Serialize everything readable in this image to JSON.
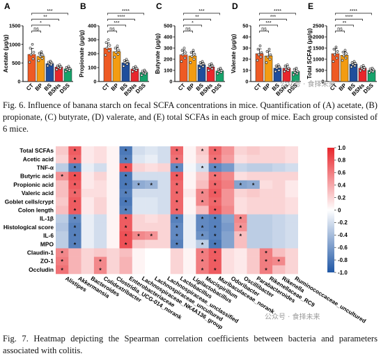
{
  "figure6": {
    "caption": "Fig. 6. Influence of banana starch on fecal SCFA concentrations in mice. Quantification of (A) acetate, (B) propionate, (C) butyrate, (D) valerate, and (E) total SCFAs in each group of mice. Each group consisted of 6 mice.",
    "groups": [
      "CT",
      "BP",
      "BS",
      "BSNs",
      "DSS"
    ],
    "group_colors": [
      "#ee5a24",
      "#f39c12",
      "#1f4e9c",
      "#e8262c",
      "#16a36b"
    ],
    "panels": [
      {
        "letter": "A",
        "ylabel": "Acetate (μg/g)",
        "ylim": [
          0,
          1500
        ],
        "ticks": [
          "0",
          "500",
          "1000",
          "1500"
        ],
        "values": [
          730,
          680,
          480,
          390,
          340
        ],
        "points": [
          [
            520,
            610,
            720,
            790,
            900,
            1000
          ],
          [
            560,
            620,
            670,
            710,
            760,
            800
          ],
          [
            420,
            450,
            480,
            500,
            520,
            550
          ],
          [
            320,
            350,
            380,
            400,
            420,
            450
          ],
          [
            270,
            300,
            330,
            350,
            380,
            410
          ]
        ],
        "sig": [
          {
            "from": 0,
            "to": 4,
            "label": "***"
          },
          {
            "from": 0,
            "to": 3,
            "label": "**"
          },
          {
            "from": 0,
            "to": 2,
            "label": "*"
          },
          {
            "from": 0,
            "to": 1,
            "label": "ns"
          }
        ]
      },
      {
        "letter": "B",
        "ylabel": "Propionate (μg/g)",
        "ylim": [
          0,
          400
        ],
        "ticks": [
          "0",
          "100",
          "200",
          "300",
          "400"
        ],
        "values": [
          240,
          215,
          135,
          90,
          65
        ],
        "points": [
          [
            190,
            220,
            240,
            260,
            280,
            300
          ],
          [
            175,
            195,
            210,
            225,
            240,
            255
          ],
          [
            110,
            125,
            135,
            145,
            150,
            160
          ],
          [
            70,
            80,
            88,
            95,
            100,
            108
          ],
          [
            45,
            55,
            62,
            68,
            75,
            82
          ]
        ],
        "sig": [
          {
            "from": 0,
            "to": 4,
            "label": "****"
          },
          {
            "from": 0,
            "to": 3,
            "label": "****"
          },
          {
            "from": 0,
            "to": 2,
            "label": "***"
          },
          {
            "from": 0,
            "to": 1,
            "label": "ns"
          }
        ]
      },
      {
        "letter": "C",
        "ylabel": "Butyrate (μg/g)",
        "ylim": [
          0,
          500
        ],
        "ticks": [
          "0",
          "100",
          "200",
          "300",
          "400",
          "500"
        ],
        "values": [
          240,
          230,
          150,
          130,
          95
        ],
        "points": [
          [
            180,
            210,
            240,
            260,
            280,
            300
          ],
          [
            170,
            200,
            225,
            245,
            260,
            280
          ],
          [
            120,
            135,
            150,
            160,
            170,
            180
          ],
          [
            100,
            115,
            130,
            140,
            150,
            160
          ],
          [
            70,
            82,
            92,
            100,
            110,
            120
          ]
        ],
        "sig": [
          {
            "from": 0,
            "to": 4,
            "label": "***"
          },
          {
            "from": 0,
            "to": 3,
            "label": "**"
          },
          {
            "from": 0,
            "to": 2,
            "label": "*"
          },
          {
            "from": 0,
            "to": 1,
            "label": "ns"
          }
        ]
      },
      {
        "letter": "D",
        "ylabel": "Valerate (μg/g)",
        "ylim": [
          0,
          50
        ],
        "ticks": [
          "0",
          "10",
          "20",
          "30",
          "40",
          "50"
        ],
        "values": [
          25,
          23,
          12,
          12,
          9
        ],
        "points": [
          [
            19,
            22,
            24,
            26,
            29,
            32
          ],
          [
            17,
            20,
            22,
            24,
            27,
            29
          ],
          [
            9,
            10,
            12,
            13,
            14,
            15
          ],
          [
            9,
            10,
            11,
            12,
            14,
            15
          ],
          [
            6,
            7,
            8,
            9,
            11,
            12
          ]
        ],
        "sig": [
          {
            "from": 0,
            "to": 4,
            "label": "****"
          },
          {
            "from": 0,
            "to": 3,
            "label": "***"
          },
          {
            "from": 0,
            "to": 2,
            "label": "***"
          },
          {
            "from": 0,
            "to": 1,
            "label": "ns"
          }
        ]
      },
      {
        "letter": "E",
        "ylabel": "Total SCFAs (μg/g)",
        "ylim": [
          0,
          2500
        ],
        "ticks": [
          "0",
          "500",
          "1000",
          "1500",
          "2000",
          "2500"
        ],
        "values": [
          1250,
          1180,
          780,
          600,
          500
        ],
        "points": [
          [
            900,
            1050,
            1200,
            1350,
            1450,
            1550
          ],
          [
            950,
            1050,
            1150,
            1250,
            1320,
            1400
          ],
          [
            650,
            700,
            760,
            810,
            850,
            900
          ],
          [
            480,
            530,
            580,
            620,
            660,
            720
          ],
          [
            400,
            440,
            480,
            520,
            560,
            600
          ]
        ],
        "sig": [
          {
            "from": 0,
            "to": 4,
            "label": "****"
          },
          {
            "from": 0,
            "to": 3,
            "label": "****"
          },
          {
            "from": 0,
            "to": 2,
            "label": "**"
          },
          {
            "from": 0,
            "to": 1,
            "label": "ns"
          }
        ]
      }
    ]
  },
  "figure7": {
    "caption": "Fig. 7. Heatmap depicting the Spearman correlation coefficients between bacteria and parameters associated with colitis.",
    "rows": [
      "Total SCFAs",
      "Acetic acid",
      "TNF-α",
      "Butyric acid",
      "Propionic acid",
      "Valeric acid",
      "Goblet cells/crypt",
      "Colon length",
      "IL-1β",
      "Histological score",
      "IL-6",
      "MPO",
      "Claudin-1",
      "ZO-1",
      "Occludin"
    ],
    "columns": [
      "Alistipes",
      "Akkermansia",
      "Bacteroides",
      "Colidextribacter",
      "Clostridia_UCG-014_norank",
      "Enterobacteriaceae",
      "Lachnospiraceae_NK4A136_group",
      "Lachnospiraceae_uncultured",
      "Lachnospiraceae_unclassified",
      "Lactobacillus",
      "Ligilactobacillus",
      "Mucispirillum",
      "Muribaculaceae_norank",
      "Odoribacter",
      "Oscillibacter",
      "Parabacteroides",
      "Rikenellaceae_RC9",
      "Rikenella",
      "Ruminococcaceae_uncultured"
    ],
    "column_labels": [
      "Alistipes",
      "Akkermansia",
      "Bacteroides",
      "Colidextribacter",
      "Clostridia_UCG-014_norank",
      "Enterobacteriaceae",
      "Lachnospiraceae_NK4A136_group",
      "Lachnospiraceae_uncultured",
      "Lachnospiraceae_unclassified",
      "Lactobacillus",
      "Ligilactobacillus",
      "Mucispirillum",
      "Muribaculaceae_norank",
      "Odoribacter",
      "Oscillibacter",
      "Parabacteroides",
      "Rikenellaceae_RC9",
      "Rikenella",
      "Ruminococcaceae_uncultured"
    ],
    "colorbar_ticks": [
      "1.0",
      "0.8",
      "0.6",
      "0.4",
      "0.2",
      "0",
      "-0.2",
      "-0.4",
      "-0.6",
      "-0.8",
      "-1.0"
    ],
    "values": [
      [
        0.25,
        0.75,
        0.1,
        0.15,
        0.05,
        -0.8,
        -0.2,
        -0.15,
        -0.2,
        0.7,
        0.05,
        0.25,
        0.7,
        0.5,
        0.2,
        0.25,
        0.2,
        0.2,
        0.15
      ],
      [
        0.2,
        0.7,
        0.1,
        0.15,
        0.05,
        -0.75,
        -0.15,
        -0.1,
        -0.2,
        0.65,
        0.05,
        0.2,
        0.65,
        0.45,
        0.15,
        0.2,
        0.2,
        0.2,
        0.15
      ],
      [
        -0.3,
        -0.75,
        -0.1,
        -0.2,
        0.05,
        0.8,
        0.2,
        0.15,
        0.2,
        -0.7,
        -0.05,
        -0.2,
        -0.7,
        -0.6,
        -0.25,
        -0.3,
        -0.3,
        -0.25,
        -0.2
      ],
      [
        0.5,
        0.8,
        0.1,
        0.2,
        0.05,
        -0.8,
        -0.2,
        -0.2,
        -0.2,
        0.75,
        0.05,
        0.25,
        0.65,
        0.55,
        0.15,
        0.2,
        0.2,
        0.2,
        0.2
      ],
      [
        0.3,
        0.75,
        0.1,
        0.15,
        0.05,
        -0.8,
        -0.5,
        -0.45,
        -0.2,
        0.7,
        0.05,
        0.3,
        0.7,
        0.6,
        -0.55,
        -0.5,
        0.15,
        0.2,
        0.1
      ],
      [
        0.3,
        0.7,
        0.15,
        0.15,
        0.05,
        -0.75,
        -0.2,
        -0.2,
        -0.2,
        0.7,
        0.1,
        0.55,
        0.75,
        0.5,
        0.2,
        0.25,
        0.2,
        0.2,
        0.1
      ],
      [
        0.25,
        0.75,
        0.1,
        0.2,
        0.05,
        -0.8,
        -0.15,
        -0.15,
        -0.2,
        0.7,
        0.05,
        0.55,
        0.7,
        0.5,
        0.15,
        0.2,
        0.2,
        0.2,
        0.15
      ],
      [
        0.3,
        0.75,
        0.1,
        0.2,
        0.05,
        -0.75,
        -0.15,
        -0.15,
        -0.2,
        0.7,
        0.05,
        0.3,
        0.75,
        0.55,
        0.15,
        0.2,
        0.2,
        0.2,
        0.15
      ],
      [
        -0.3,
        -0.7,
        -0.1,
        -0.2,
        0.05,
        0.75,
        0.2,
        0.15,
        0.2,
        -0.75,
        -0.1,
        -0.7,
        -0.75,
        -0.55,
        0.55,
        -0.3,
        -0.3,
        -0.25,
        -0.2
      ],
      [
        -0.35,
        -0.75,
        -0.1,
        -0.2,
        0.05,
        0.75,
        0.2,
        0.2,
        0.2,
        -0.7,
        -0.1,
        -0.7,
        -0.75,
        -0.6,
        0.5,
        -0.3,
        -0.3,
        -0.25,
        -0.2
      ],
      [
        -0.3,
        -0.75,
        -0.1,
        -0.2,
        0.05,
        0.8,
        0.55,
        0.5,
        0.2,
        -0.7,
        -0.1,
        -0.65,
        -0.75,
        -0.55,
        0.3,
        -0.3,
        -0.3,
        -0.25,
        -0.2
      ],
      [
        -0.3,
        -0.75,
        -0.1,
        -0.2,
        0.05,
        0.8,
        0.25,
        0.2,
        0.2,
        -0.75,
        -0.1,
        -0.3,
        -0.8,
        -0.55,
        0.3,
        -0.3,
        -0.3,
        -0.25,
        -0.2
      ],
      [
        0.55,
        0.35,
        0.2,
        0.25,
        0.2,
        0.3,
        0.05,
        0.0,
        0.0,
        0.2,
        0.05,
        0.6,
        0.75,
        0.15,
        0.1,
        0.25,
        0.6,
        0.3,
        0.2
      ],
      [
        0.6,
        0.35,
        0.2,
        0.55,
        0.2,
        0.35,
        0.05,
        0.0,
        0.0,
        0.2,
        0.05,
        0.6,
        0.75,
        0.15,
        0.1,
        0.25,
        0.6,
        0.55,
        0.2
      ],
      [
        0.65,
        0.35,
        0.2,
        0.55,
        0.2,
        0.35,
        0.05,
        0.0,
        0.0,
        0.2,
        0.05,
        0.6,
        0.75,
        0.15,
        0.1,
        0.25,
        0.6,
        0.3,
        0.2
      ]
    ],
    "stars": [
      [
        0,
        1
      ],
      [
        0,
        5
      ],
      [
        0,
        9
      ],
      [
        0,
        11
      ],
      [
        0,
        12
      ],
      [
        1,
        1
      ],
      [
        1,
        5
      ],
      [
        1,
        9
      ],
      [
        1,
        12
      ],
      [
        2,
        1
      ],
      [
        2,
        5
      ],
      [
        2,
        9
      ],
      [
        2,
        11
      ],
      [
        2,
        12
      ],
      [
        3,
        0
      ],
      [
        3,
        1
      ],
      [
        3,
        5
      ],
      [
        3,
        9
      ],
      [
        3,
        12
      ],
      [
        4,
        1
      ],
      [
        4,
        5
      ],
      [
        4,
        6
      ],
      [
        4,
        7
      ],
      [
        4,
        9
      ],
      [
        4,
        12
      ],
      [
        4,
        14
      ],
      [
        4,
        15
      ],
      [
        5,
        1
      ],
      [
        5,
        5
      ],
      [
        5,
        9
      ],
      [
        5,
        11
      ],
      [
        5,
        12
      ],
      [
        6,
        1
      ],
      [
        6,
        5
      ],
      [
        6,
        9
      ],
      [
        6,
        11
      ],
      [
        6,
        12
      ],
      [
        7,
        1
      ],
      [
        7,
        5
      ],
      [
        7,
        9
      ],
      [
        7,
        12
      ],
      [
        8,
        1
      ],
      [
        8,
        5
      ],
      [
        8,
        9
      ],
      [
        8,
        11
      ],
      [
        8,
        12
      ],
      [
        8,
        14
      ],
      [
        9,
        1
      ],
      [
        9,
        5
      ],
      [
        9,
        9
      ],
      [
        9,
        11
      ],
      [
        9,
        12
      ],
      [
        9,
        14
      ],
      [
        10,
        1
      ],
      [
        10,
        5
      ],
      [
        10,
        6
      ],
      [
        10,
        7
      ],
      [
        10,
        9
      ],
      [
        10,
        11
      ],
      [
        10,
        12
      ],
      [
        10,
        14
      ],
      [
        11,
        1
      ],
      [
        11,
        5
      ],
      [
        11,
        9
      ],
      [
        11,
        11
      ],
      [
        11,
        12
      ],
      [
        12,
        0
      ],
      [
        12,
        11
      ],
      [
        12,
        12
      ],
      [
        12,
        16
      ],
      [
        13,
        0
      ],
      [
        13,
        3
      ],
      [
        13,
        11
      ],
      [
        13,
        12
      ],
      [
        13,
        16
      ],
      [
        13,
        17
      ],
      [
        14,
        0
      ],
      [
        14,
        3
      ],
      [
        14,
        11
      ],
      [
        14,
        12
      ],
      [
        14,
        16
      ]
    ]
  },
  "watermarks": [
    "公众号 · 食择未来",
    "公众号 · 食择未来"
  ],
  "colors": {
    "positive": "#e8262c",
    "negative": "#1f57a6",
    "neutral": "#ffffff"
  },
  "chart_data": [
    {
      "type": "bar",
      "title": "A",
      "ylabel": "Acetate (μg/g)",
      "categories": [
        "CT",
        "BP",
        "BS",
        "BSNs",
        "DSS"
      ],
      "values": [
        730,
        680,
        480,
        390,
        340
      ],
      "ylim": [
        0,
        1500
      ]
    },
    {
      "type": "bar",
      "title": "B",
      "ylabel": "Propionate (μg/g)",
      "categories": [
        "CT",
        "BP",
        "BS",
        "BSNs",
        "DSS"
      ],
      "values": [
        240,
        215,
        135,
        90,
        65
      ],
      "ylim": [
        0,
        400
      ]
    },
    {
      "type": "bar",
      "title": "C",
      "ylabel": "Butyrate (μg/g)",
      "categories": [
        "CT",
        "BP",
        "BS",
        "BSNs",
        "DSS"
      ],
      "values": [
        240,
        230,
        150,
        130,
        95
      ],
      "ylim": [
        0,
        500
      ]
    },
    {
      "type": "bar",
      "title": "D",
      "ylabel": "Valerate (μg/g)",
      "categories": [
        "CT",
        "BP",
        "BS",
        "BSNs",
        "DSS"
      ],
      "values": [
        25,
        23,
        12,
        12,
        9
      ],
      "ylim": [
        0,
        50
      ]
    },
    {
      "type": "bar",
      "title": "E",
      "ylabel": "Total SCFAs (μg/g)",
      "categories": [
        "CT",
        "BP",
        "BS",
        "BSNs",
        "DSS"
      ],
      "values": [
        1250,
        1180,
        780,
        600,
        500
      ],
      "ylim": [
        0,
        2500
      ]
    },
    {
      "type": "heatmap",
      "xlabel": "",
      "ylabel": "",
      "value_range": [
        -1.0,
        1.0
      ]
    }
  ]
}
